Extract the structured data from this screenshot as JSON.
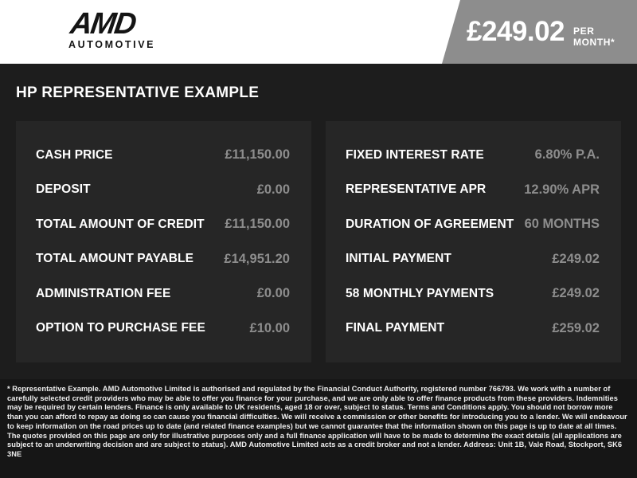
{
  "header": {
    "logo": {
      "brand": "AMD",
      "subtitle": "AUTOMOTIVE"
    },
    "price_badge": {
      "amount": "£249.02",
      "period": "PER MONTH*"
    }
  },
  "page_title": "HP REPRESENTATIVE EXAMPLE",
  "tables": {
    "left": {
      "rows": [
        {
          "label": "CASH PRICE",
          "value": "£11,150.00"
        },
        {
          "label": "DEPOSIT",
          "value": "£0.00"
        },
        {
          "label": "TOTAL AMOUNT OF CREDIT",
          "value": "£11,150.00"
        },
        {
          "label": "TOTAL AMOUNT PAYABLE",
          "value": "£14,951.20"
        },
        {
          "label": "ADMINISTRATION FEE",
          "value": "£0.00"
        },
        {
          "label": "OPTION TO PURCHASE FEE",
          "value": "£10.00"
        }
      ]
    },
    "right": {
      "rows": [
        {
          "label": "FIXED INTEREST RATE",
          "value": "6.80% P.A."
        },
        {
          "label": "REPRESENTATIVE APR",
          "value": "12.90% APR"
        },
        {
          "label": "DURATION OF AGREEMENT",
          "value": "60 MONTHS"
        },
        {
          "label": "INITIAL PAYMENT",
          "value": "£249.02"
        },
        {
          "label": "58 MONTHLY PAYMENTS",
          "value": "£249.02"
        },
        {
          "label": "FINAL PAYMENT",
          "value": "£259.02"
        }
      ]
    }
  },
  "footer": {
    "disclaimer": "* Representative Example. AMD Automotive Limited is authorised and regulated by the Financial Conduct Authority, registered number 766793. We work with a number of carefully selected credit providers who may be able to offer you finance for your purchase, and we are only able to offer finance products from these providers. Indemnities may be required by certain lenders. Finance is only available to UK residents, aged 18 or over, subject to status. Terms and Conditions apply. You should not borrow more than you can afford to repay as doing so can cause you financial difficulties. We will receive a commission or other benefits for introducing you to a lender. We will endeavour to keep information on the road prices up to date (and related finance examples) but we cannot guarantee that the information shown on this page is up to date at all times. The quotes provided on this page are only for illustrative purposes only and a full finance application will have to be made to determine the exact details (all applications are subject to an underwriting decision and are subject to status). AMD Automotive Limited acts as a credit broker and not a lender. Address: Unit 1B, Vale Road, Stockport, SK6 3NE"
  },
  "colors": {
    "header_bg": "#ffffff",
    "badge_bg": "#8d8d8d",
    "body_bg": "#1d1d1d",
    "panel_bg": "#262626",
    "footer_bg": "#161616",
    "label_text": "#ffffff",
    "value_text": "#8d8d8d"
  }
}
